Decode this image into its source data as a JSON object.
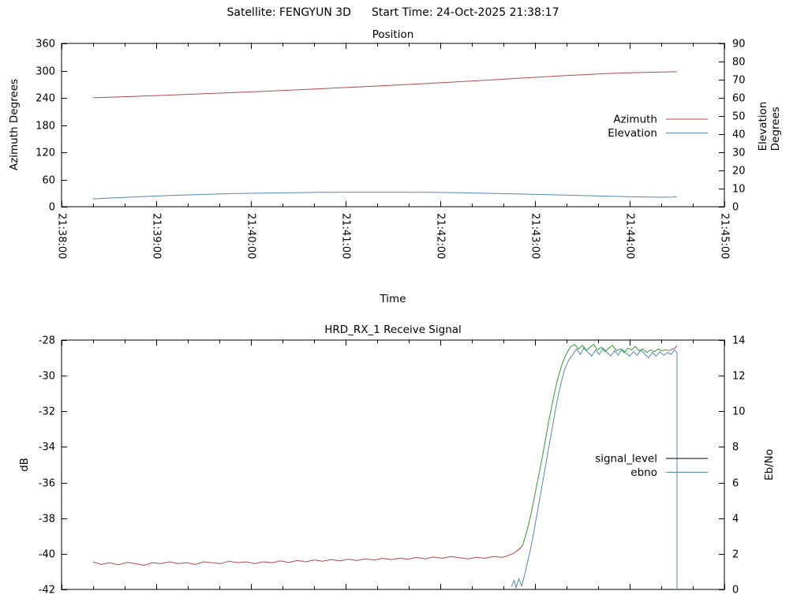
{
  "header": {
    "satellite": "Satellite: FENGYUN 3D",
    "start_time": "Start Time: 24-Oct-2025 21:38:17"
  },
  "colors": {
    "azimuth_red": "#b04a4a",
    "elevation_blue": "#5585b5",
    "signal_green": "#2d9e2d",
    "legend_black": "#000000",
    "axis_black": "#000000"
  },
  "chart_data": [
    {
      "type": "line",
      "title": "Position",
      "xlabel": "Time",
      "ylabel": "Azimuth Degrees",
      "y2label": "Elevation Degrees",
      "x_axis": {
        "min": 0,
        "max": 7,
        "show_labels": true,
        "minor_per_major": 3,
        "labels": [
          "21:38:00",
          "21:39:00",
          "21:40:00",
          "21:41:00",
          "21:42:00",
          "21:43:00",
          "21:44:00",
          "21:45:00"
        ]
      },
      "y_axis": {
        "min": 0,
        "max": 360,
        "ticks": [
          0,
          60,
          120,
          180,
          240,
          300,
          360
        ]
      },
      "y2_axis": {
        "min": 0,
        "max": 90,
        "ticks": [
          0,
          10,
          20,
          30,
          40,
          50,
          60,
          70,
          80,
          90
        ]
      },
      "legend": [
        {
          "label": "Azimuth",
          "color": "#b04a4a"
        },
        {
          "label": "Elevation",
          "color": "#5585b5"
        }
      ],
      "series": [
        {
          "name": "Azimuth",
          "axis": "y",
          "color": "#b04a4a",
          "points": [
            [
              0.33,
              240.2
            ],
            [
              0.5,
              241.3
            ],
            [
              0.75,
              243.1
            ],
            [
              1.0,
              245.0
            ],
            [
              1.25,
              247.0
            ],
            [
              1.5,
              249.0
            ],
            [
              1.75,
              251.1
            ],
            [
              2.0,
              253.3
            ],
            [
              2.25,
              255.5
            ],
            [
              2.5,
              257.8
            ],
            [
              2.75,
              260.2
            ],
            [
              3.0,
              262.7
            ],
            [
              3.25,
              265.2
            ],
            [
              3.5,
              267.8
            ],
            [
              3.75,
              270.5
            ],
            [
              4.0,
              273.3
            ],
            [
              4.25,
              276.2
            ],
            [
              4.5,
              279.1
            ],
            [
              4.75,
              282.1
            ],
            [
              5.0,
              285.2
            ],
            [
              5.25,
              288.4
            ],
            [
              5.5,
              291.0
            ],
            [
              5.75,
              293.4
            ],
            [
              6.0,
              295.3
            ],
            [
              6.25,
              296.6
            ],
            [
              6.4,
              297.2
            ],
            [
              6.5,
              297.6
            ]
          ]
        },
        {
          "name": "Elevation",
          "axis": "y2",
          "color": "#5585b5",
          "points": [
            [
              0.33,
              4.3
            ],
            [
              0.6,
              5.0
            ],
            [
              0.9,
              5.7
            ],
            [
              1.2,
              6.3
            ],
            [
              1.5,
              6.8
            ],
            [
              1.8,
              7.2
            ],
            [
              2.1,
              7.5
            ],
            [
              2.4,
              7.7
            ],
            [
              2.7,
              7.9
            ],
            [
              3.0,
              8.0
            ],
            [
              3.3,
              8.0
            ],
            [
              3.6,
              8.0
            ],
            [
              3.9,
              7.9
            ],
            [
              4.2,
              7.7
            ],
            [
              4.5,
              7.4
            ],
            [
              4.8,
              7.1
            ],
            [
              5.1,
              6.7
            ],
            [
              5.4,
              6.3
            ],
            [
              5.7,
              5.9
            ],
            [
              6.0,
              5.5
            ],
            [
              6.2,
              5.3
            ],
            [
              6.35,
              5.2
            ],
            [
              6.45,
              5.3
            ],
            [
              6.5,
              5.6
            ]
          ]
        }
      ]
    },
    {
      "type": "line",
      "title": "HRD_RX_1 Receive Signal",
      "xlabel": "",
      "ylabel": "dB",
      "y2label": "Eb/No",
      "x_axis": {
        "min": 0,
        "max": 7,
        "show_labels": false,
        "minor_per_major": 3,
        "labels": []
      },
      "y_axis": {
        "min": -42,
        "max": -28,
        "ticks": [
          -42,
          -40,
          -38,
          -36,
          -34,
          -32,
          -30,
          -28
        ]
      },
      "y2_axis": {
        "min": 0,
        "max": 14,
        "ticks": [
          0,
          2,
          4,
          6,
          8,
          10,
          12,
          14
        ]
      },
      "legend": [
        {
          "label": "signal_level",
          "color": "#000000"
        },
        {
          "label": "ebno",
          "color": "#5585b5"
        }
      ],
      "series": [
        {
          "name": "signal_level",
          "axis": "y",
          "color": "#b04a4a",
          "points": [
            [
              0.33,
              -40.45
            ],
            [
              0.42,
              -40.6
            ],
            [
              0.51,
              -40.5
            ],
            [
              0.6,
              -40.62
            ],
            [
              0.69,
              -40.48
            ],
            [
              0.78,
              -40.55
            ],
            [
              0.87,
              -40.65
            ],
            [
              0.96,
              -40.5
            ],
            [
              1.05,
              -40.55
            ],
            [
              1.14,
              -40.45
            ],
            [
              1.23,
              -40.55
            ],
            [
              1.32,
              -40.5
            ],
            [
              1.41,
              -40.6
            ],
            [
              1.5,
              -40.45
            ],
            [
              1.59,
              -40.5
            ],
            [
              1.68,
              -40.55
            ],
            [
              1.77,
              -40.42
            ],
            [
              1.86,
              -40.5
            ],
            [
              1.95,
              -40.45
            ],
            [
              2.04,
              -40.55
            ],
            [
              2.13,
              -40.45
            ],
            [
              2.22,
              -40.5
            ],
            [
              2.31,
              -40.4
            ],
            [
              2.4,
              -40.48
            ],
            [
              2.49,
              -40.38
            ],
            [
              2.58,
              -40.45
            ],
            [
              2.67,
              -40.35
            ],
            [
              2.76,
              -40.42
            ],
            [
              2.85,
              -40.32
            ],
            [
              2.94,
              -40.4
            ],
            [
              3.03,
              -40.3
            ],
            [
              3.12,
              -40.38
            ],
            [
              3.21,
              -40.28
            ],
            [
              3.3,
              -40.35
            ],
            [
              3.39,
              -40.25
            ],
            [
              3.48,
              -40.32
            ],
            [
              3.57,
              -40.25
            ],
            [
              3.66,
              -40.3
            ],
            [
              3.75,
              -40.2
            ],
            [
              3.84,
              -40.28
            ],
            [
              3.93,
              -40.18
            ],
            [
              4.02,
              -40.25
            ],
            [
              4.11,
              -40.15
            ],
            [
              4.2,
              -40.22
            ],
            [
              4.29,
              -40.28
            ],
            [
              4.38,
              -40.2
            ],
            [
              4.47,
              -40.25
            ],
            [
              4.56,
              -40.15
            ],
            [
              4.65,
              -40.2
            ],
            [
              4.72,
              -40.1
            ],
            [
              4.78,
              -39.95
            ],
            [
              4.82,
              -39.8
            ],
            [
              4.85,
              -39.65
            ],
            [
              4.87,
              -39.5
            ]
          ]
        },
        {
          "name": "signal_level",
          "axis": "y",
          "color": "#2d9e2d",
          "points": [
            [
              4.87,
              -39.5
            ],
            [
              4.9,
              -39.0
            ],
            [
              4.93,
              -38.4
            ],
            [
              4.96,
              -37.7
            ],
            [
              4.99,
              -36.9
            ],
            [
              5.02,
              -36.1
            ],
            [
              5.05,
              -35.3
            ],
            [
              5.08,
              -34.5
            ],
            [
              5.11,
              -33.6
            ],
            [
              5.14,
              -32.7
            ],
            [
              5.17,
              -31.9
            ],
            [
              5.2,
              -31.1
            ],
            [
              5.23,
              -30.4
            ],
            [
              5.26,
              -29.8
            ],
            [
              5.29,
              -29.3
            ],
            [
              5.32,
              -28.9
            ],
            [
              5.35,
              -28.6
            ],
            [
              5.38,
              -28.35
            ],
            [
              5.42,
              -28.25
            ],
            [
              5.46,
              -28.5
            ],
            [
              5.5,
              -28.3
            ],
            [
              5.54,
              -28.6
            ],
            [
              5.58,
              -28.4
            ],
            [
              5.62,
              -28.25
            ],
            [
              5.66,
              -28.55
            ],
            [
              5.7,
              -28.4
            ],
            [
              5.74,
              -28.65
            ],
            [
              5.78,
              -28.45
            ],
            [
              5.82,
              -28.3
            ],
            [
              5.86,
              -28.6
            ],
            [
              5.9,
              -28.5
            ],
            [
              5.94,
              -28.7
            ],
            [
              5.98,
              -28.45
            ],
            [
              6.02,
              -28.55
            ],
            [
              6.06,
              -28.35
            ],
            [
              6.1,
              -28.6
            ],
            [
              6.14,
              -28.5
            ],
            [
              6.18,
              -28.7
            ],
            [
              6.22,
              -28.55
            ],
            [
              6.26,
              -28.65
            ],
            [
              6.3,
              -28.5
            ],
            [
              6.34,
              -28.6
            ],
            [
              6.38,
              -28.55
            ],
            [
              6.42,
              -28.6
            ]
          ]
        },
        {
          "name": "signal_level",
          "axis": "y",
          "color": "#b04a4a",
          "points": [
            [
              6.42,
              -28.6
            ],
            [
              6.45,
              -28.5
            ],
            [
              6.48,
              -28.45
            ],
            [
              6.5,
              -28.3
            ]
          ]
        },
        {
          "name": "ebno",
          "axis": "y2",
          "color": "#5585b5",
          "points": [
            [
              4.75,
              0.15
            ],
            [
              4.78,
              0.5
            ],
            [
              4.8,
              0.1
            ],
            [
              4.83,
              0.6
            ],
            [
              4.86,
              0.2
            ],
            [
              4.89,
              0.8
            ],
            [
              4.92,
              1.5
            ],
            [
              4.95,
              2.2
            ],
            [
              4.98,
              3.0
            ],
            [
              5.01,
              3.9
            ],
            [
              5.04,
              4.8
            ],
            [
              5.07,
              5.7
            ],
            [
              5.1,
              6.6
            ],
            [
              5.13,
              7.5
            ],
            [
              5.16,
              8.4
            ],
            [
              5.19,
              9.3
            ],
            [
              5.22,
              10.2
            ],
            [
              5.25,
              11.0
            ],
            [
              5.28,
              11.7
            ],
            [
              5.31,
              12.3
            ],
            [
              5.34,
              12.7
            ],
            [
              5.37,
              13.0
            ],
            [
              5.4,
              13.2
            ],
            [
              5.44,
              13.5
            ],
            [
              5.48,
              13.2
            ],
            [
              5.52,
              13.6
            ],
            [
              5.56,
              13.3
            ],
            [
              5.6,
              13.1
            ],
            [
              5.64,
              13.45
            ],
            [
              5.68,
              13.2
            ],
            [
              5.72,
              13.55
            ],
            [
              5.76,
              13.3
            ],
            [
              5.8,
              13.1
            ],
            [
              5.84,
              13.4
            ],
            [
              5.88,
              13.15
            ],
            [
              5.92,
              13.5
            ],
            [
              5.96,
              13.25
            ],
            [
              6.0,
              13.1
            ],
            [
              6.04,
              13.35
            ],
            [
              6.08,
              13.15
            ],
            [
              6.12,
              13.45
            ],
            [
              6.16,
              13.2
            ],
            [
              6.2,
              13.0
            ],
            [
              6.24,
              13.3
            ],
            [
              6.28,
              13.1
            ],
            [
              6.32,
              13.35
            ],
            [
              6.36,
              13.15
            ],
            [
              6.4,
              13.3
            ],
            [
              6.44,
              13.2
            ],
            [
              6.47,
              13.45
            ],
            [
              6.5,
              13.3
            ],
            [
              6.5,
              0.0
            ]
          ]
        }
      ]
    }
  ]
}
